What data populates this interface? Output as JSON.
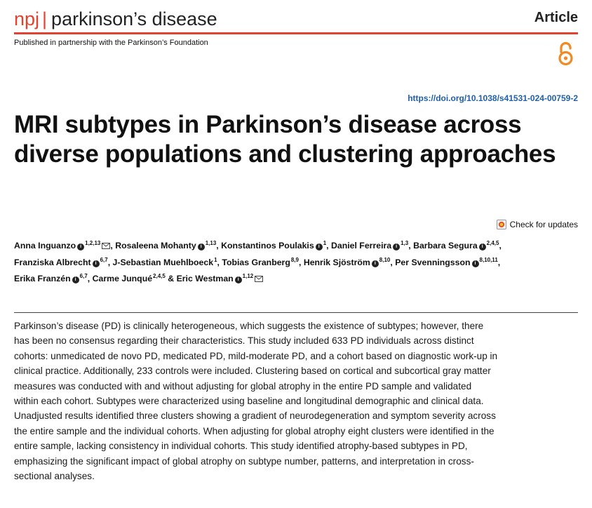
{
  "journal": {
    "prefix": "npj",
    "separator": "|",
    "name": "parkinson’s disease"
  },
  "article_type": "Article",
  "partnership": "Published in partnership with the Parkinson’s Foundation",
  "doi": "https://doi.org/10.1038/s41531-024-00759-2",
  "title": "MRI subtypes in Parkinson’s disease across diverse populations and clustering approaches",
  "check_updates": "Check for updates",
  "authors": [
    {
      "name": "Anna Inguanzo",
      "aff": "1,2,13",
      "orcid": true,
      "email": true,
      "sep": ", "
    },
    {
      "name": "Rosaleena Mohanty",
      "aff": "1,13",
      "orcid": true,
      "email": false,
      "sep": ", "
    },
    {
      "name": "Konstantinos Poulakis",
      "aff": "1",
      "orcid": true,
      "email": false,
      "sep": ", "
    },
    {
      "name": "Daniel Ferreira",
      "aff": "1,3",
      "orcid": true,
      "email": false,
      "sep": ", "
    },
    {
      "name": "Barbara Segura",
      "aff": "2,4,5",
      "orcid": true,
      "email": false,
      "sep": ", "
    },
    {
      "name": "Franziska Albrecht",
      "aff": "6,7",
      "orcid": true,
      "email": false,
      "sep": ", "
    },
    {
      "name": "J-Sebastian Muehlboeck",
      "aff": "1",
      "orcid": false,
      "email": false,
      "sep": ", "
    },
    {
      "name": "Tobias Granberg",
      "aff": "8,9",
      "orcid": false,
      "email": false,
      "sep": ", "
    },
    {
      "name": "Henrik Sjöström",
      "aff": "8,10",
      "orcid": true,
      "email": false,
      "sep": ", "
    },
    {
      "name": "Per Svenningsson",
      "aff": "8,10,11",
      "orcid": true,
      "email": false,
      "sep": ", "
    },
    {
      "name": "Erika Franzén",
      "aff": "6,7",
      "orcid": true,
      "email": false,
      "sep": ", "
    },
    {
      "name": "Carme Junqué",
      "aff": "2,4,5",
      "orcid": false,
      "email": false,
      "sep": " & "
    },
    {
      "name": "Eric Westman",
      "aff": "1,12",
      "orcid": true,
      "email": true,
      "sep": ""
    }
  ],
  "abstract": "Parkinson’s disease (PD) is clinically heterogeneous, which suggests the existence of subtypes; however, there has been no consensus regarding their characteristics. This study included 633 PD individuals across distinct cohorts: unmedicated de novo PD, medicated PD, mild-moderate PD, and a cohort based on diagnostic work-up in clinical practice. Additionally, 233 controls were included. Clustering based on cortical and subcortical gray matter measures was conducted with and without adjusting for global atrophy in the entire PD sample and validated within each cohort. Subtypes were characterized using baseline and longitudinal demographic and clinical data. Unadjusted results identified three clusters showing a gradient of neurodegeneration and symptom severity across the entire sample and the individual cohorts. When adjusting for global atrophy eight clusters were identified in the entire sample, lacking consistency in individual cohorts. This study identified atrophy-based subtypes in PD, emphasizing the significant impact of global atrophy on subtype number, patterns, and interpretation in cross-sectional analyses.",
  "icons": {
    "open_access": "open-access-lock-icon",
    "check_updates": "check-for-updates-icon",
    "orcid": "orcid-icon",
    "email": "envelope-icon"
  },
  "colors": {
    "brand": "#e0432f",
    "link": "#1f5fa8"
  }
}
